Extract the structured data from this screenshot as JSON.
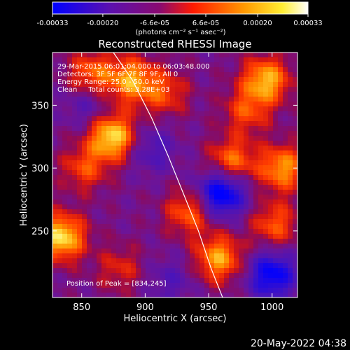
{
  "chart_data": {
    "type": "heatmap",
    "title": "Reconstructed RHESSI Image",
    "xlabel": "Heliocentric X (arcsec)",
    "ylabel": "Heliocentric Y (arcsec)",
    "xlim": [
      827,
      1020
    ],
    "ylim": [
      197,
      392
    ],
    "x_ticks": [
      "850",
      "900",
      "950",
      "1000"
    ],
    "y_ticks": [
      "250",
      "300",
      "350"
    ],
    "x_tick_values": [
      850,
      900,
      950,
      1000
    ],
    "y_tick_values": [
      250,
      300,
      350
    ],
    "colorbar": {
      "tick_labels": [
        "-0.00033",
        "-0.00020",
        "-6.6e-05",
        "6.6e-05",
        "0.00020",
        "0.00033"
      ],
      "tick_values": [
        -0.00033,
        -0.0002,
        -6.6e-05,
        6.6e-05,
        0.0002,
        0.00033
      ],
      "range": [
        -0.00033,
        0.00033
      ],
      "unit_label": "(photons cm⁻² s⁻¹ asec⁻²)",
      "colors": [
        "#0000ff",
        "#6a0c9a",
        "#ff1a00",
        "#ff9900",
        "#ffffff"
      ]
    },
    "annotations": [
      "29-Mar-2015 06:01:04.000 to 06:03:48.000",
      "Detectors: 3F 5F 6F 7F 8F 9F, All 0",
      "Energy Range: 25.0 - 50.0 keV",
      "Clean     Total counts: 3.28E+03"
    ],
    "peak_label": "Position of Peak = [834,245]",
    "peak": [
      834,
      245
    ],
    "limb_curve": [
      [
        875,
        392
      ],
      [
        890,
        370
      ],
      [
        905,
        340
      ],
      [
        918,
        310
      ],
      [
        930,
        280
      ],
      [
        942,
        250
      ],
      [
        952,
        220
      ],
      [
        961,
        197
      ]
    ],
    "hot_spots": [
      {
        "x": 874,
        "y": 325,
        "value": 0.00033
      },
      {
        "x": 834,
        "y": 245,
        "value": 0.00033
      },
      {
        "x": 889,
        "y": 370,
        "value": 0.00025
      },
      {
        "x": 858,
        "y": 375,
        "value": 0.0002
      },
      {
        "x": 935,
        "y": 265,
        "value": 0.0002
      },
      {
        "x": 968,
        "y": 305,
        "value": 0.00022
      },
      {
        "x": 995,
        "y": 370,
        "value": 0.00028
      },
      {
        "x": 1008,
        "y": 300,
        "value": 0.00025
      },
      {
        "x": 1002,
        "y": 255,
        "value": 0.00018
      },
      {
        "x": 958,
        "y": 228,
        "value": 0.00026
      },
      {
        "x": 980,
        "y": 345,
        "value": 0.00016
      },
      {
        "x": 852,
        "y": 300,
        "value": 0.00016
      },
      {
        "x": 915,
        "y": 360,
        "value": 0.00016
      },
      {
        "x": 880,
        "y": 220,
        "value": 0.00012
      }
    ],
    "cold_spots": [
      {
        "x": 905,
        "y": 315,
        "value": -0.00012
      },
      {
        "x": 960,
        "y": 280,
        "value": -0.00033
      },
      {
        "x": 1000,
        "y": 215,
        "value": -0.00028
      },
      {
        "x": 855,
        "y": 350,
        "value": -0.0001
      },
      {
        "x": 920,
        "y": 210,
        "value": -9e-05
      }
    ]
  },
  "footer": {
    "date": "20-May-2022 04:38"
  }
}
